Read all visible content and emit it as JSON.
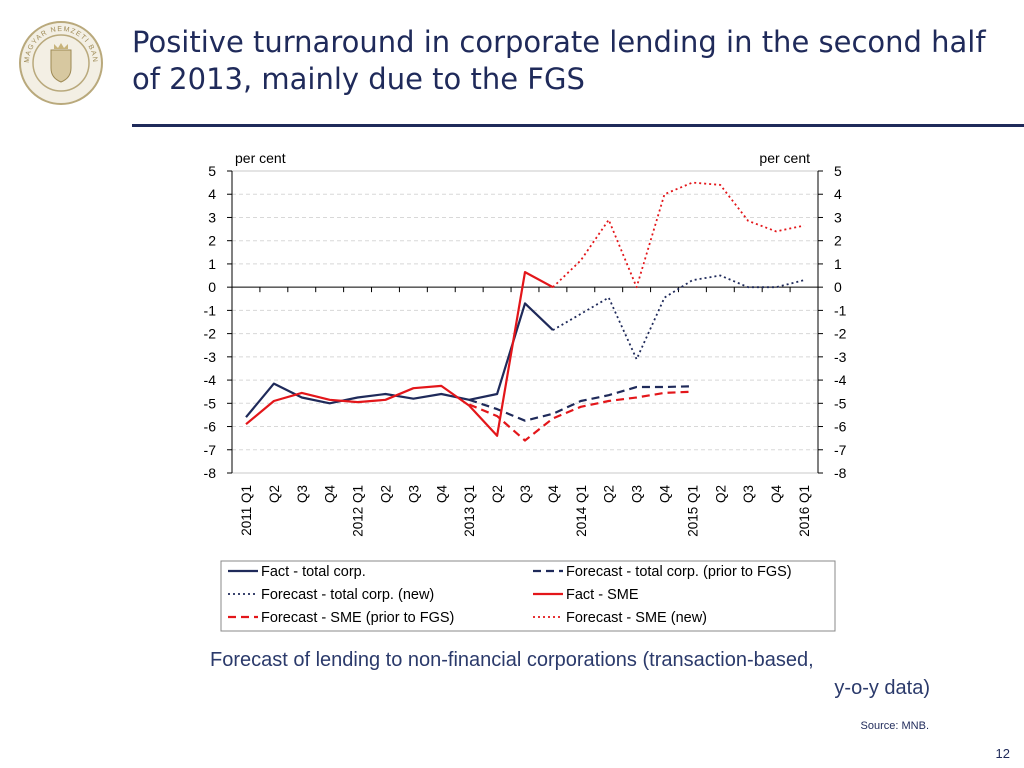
{
  "slide": {
    "title": "Positive turnaround in corporate lending in the second half of 2013, mainly due to the FGS",
    "caption_line1": "Forecast of lending to non-financial corporations (transaction-based,",
    "caption_line2": "y-o-y data)",
    "source": "Source: MNB.",
    "page_number": "12",
    "logo_text": "MAGYAR NEMZETI BANK",
    "accent_color": "#1f2a5a"
  },
  "chart_data": {
    "type": "line",
    "ylabel_left": "per cent",
    "ylabel_right": "per cent",
    "ylim": [
      -8,
      5
    ],
    "yticks": [
      5,
      4,
      3,
      2,
      1,
      0,
      -1,
      -2,
      -3,
      -4,
      -5,
      -6,
      -7,
      -8
    ],
    "categories": [
      "2011 Q1",
      "Q2",
      "Q3",
      "Q4",
      "2012 Q1",
      "Q2",
      "Q3",
      "Q4",
      "2013 Q1",
      "Q2",
      "Q3",
      "Q4",
      "2014 Q1",
      "Q2",
      "Q3",
      "Q4",
      "2015 Q1",
      "Q2",
      "Q3",
      "Q4",
      "2016 Q1"
    ],
    "grid": "horizontal dashed",
    "legend_position": "bottom",
    "series": [
      {
        "name": "Fact - total corp.",
        "color": "#1f2a5a",
        "style": "solid",
        "values": [
          -5.6,
          -4.15,
          -4.75,
          -5.0,
          -4.75,
          -4.6,
          -4.8,
          -4.6,
          -4.85,
          -4.6,
          -0.7,
          -1.85,
          null,
          null,
          null,
          null,
          null,
          null,
          null,
          null,
          null
        ]
      },
      {
        "name": "Forecast - total corp. (prior to FGS)",
        "color": "#1f2a5a",
        "style": "dashed",
        "values": [
          null,
          null,
          null,
          null,
          null,
          null,
          null,
          null,
          -4.85,
          -5.25,
          -5.75,
          -5.45,
          -4.9,
          -4.65,
          -4.3,
          -4.3,
          -4.27,
          null,
          null,
          null,
          null
        ]
      },
      {
        "name": "Forecast - total corp. (new)",
        "color": "#1f2a5a",
        "style": "dotted",
        "values": [
          null,
          null,
          null,
          null,
          null,
          null,
          null,
          null,
          null,
          null,
          null,
          -1.85,
          -1.15,
          -0.45,
          -3.1,
          -0.45,
          0.3,
          0.5,
          0.0,
          0.0,
          0.3
        ]
      },
      {
        "name": "Fact - SME",
        "color": "#e3161a",
        "style": "solid",
        "values": [
          -5.9,
          -4.9,
          -4.55,
          -4.85,
          -4.95,
          -4.85,
          -4.35,
          -4.25,
          -5.1,
          -6.4,
          0.65,
          0.0,
          null,
          null,
          null,
          null,
          null,
          null,
          null,
          null,
          null
        ]
      },
      {
        "name": "Forecast - SME  (prior to FGS)",
        "color": "#e3161a",
        "style": "dashed",
        "values": [
          null,
          null,
          null,
          null,
          null,
          null,
          null,
          null,
          -5.05,
          -5.55,
          -6.6,
          -5.65,
          -5.15,
          -4.9,
          -4.75,
          -4.55,
          -4.5,
          null,
          null,
          null,
          null
        ]
      },
      {
        "name": "Forecast - SME  (new)",
        "color": "#e3161a",
        "style": "dotted",
        "values": [
          null,
          null,
          null,
          null,
          null,
          null,
          null,
          null,
          null,
          null,
          null,
          0.0,
          1.15,
          2.9,
          0.0,
          4.0,
          4.5,
          4.4,
          2.85,
          2.4,
          2.65
        ]
      }
    ]
  }
}
